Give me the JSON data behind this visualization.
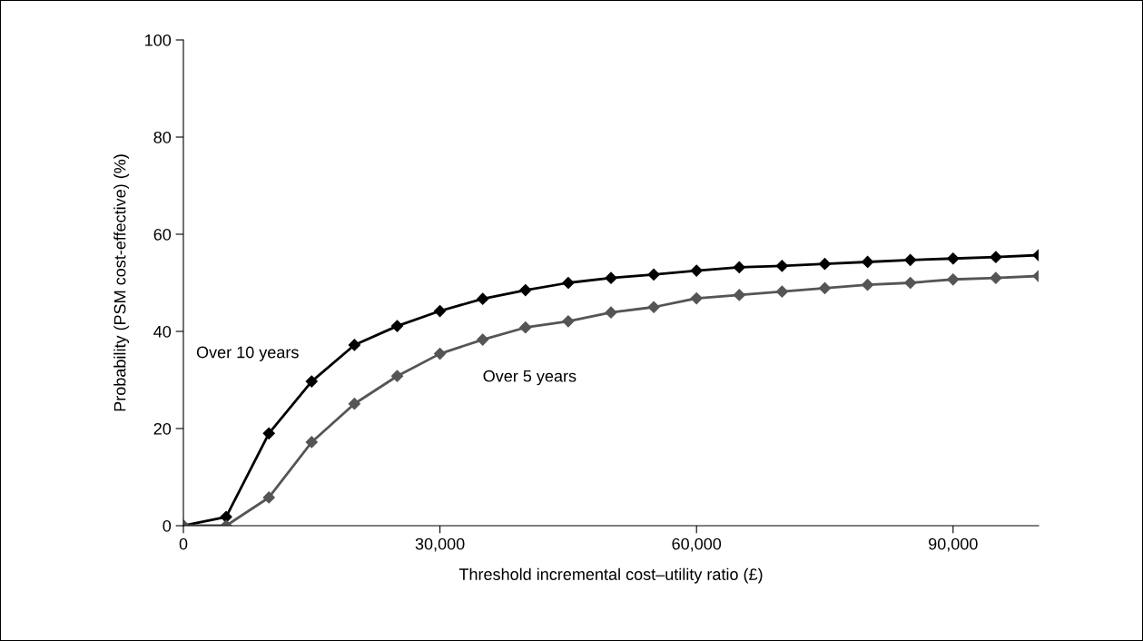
{
  "chart_data": {
    "type": "line",
    "xlabel": "Threshold incremental cost–utility ratio (£)",
    "ylabel": "Probability (PSM cost-effective) (%)",
    "x": [
      0,
      5000,
      10000,
      15000,
      20000,
      25000,
      30000,
      35000,
      40000,
      45000,
      50000,
      55000,
      60000,
      65000,
      70000,
      75000,
      80000,
      85000,
      90000,
      95000,
      100000
    ],
    "series": [
      {
        "name": "Over 10 years",
        "color": "#000000",
        "values": [
          0,
          1.8,
          19,
          29.7,
          37.2,
          41.1,
          44.2,
          46.7,
          48.5,
          50,
          51,
          51.7,
          52.5,
          53.2,
          53.5,
          53.9,
          54.3,
          54.7,
          55,
          55.3,
          55.7
        ]
      },
      {
        "name": "Over 5 years",
        "color": "#555555",
        "values": [
          0,
          0,
          5.8,
          17.2,
          25.1,
          30.8,
          35.4,
          38.3,
          40.8,
          42.1,
          43.9,
          45,
          46.8,
          47.5,
          48.2,
          48.9,
          49.6,
          50,
          50.7,
          51,
          51.4
        ]
      }
    ],
    "xlim": [
      0,
      100000
    ],
    "ylim": [
      0,
      100
    ],
    "xticks": [
      0,
      {
        "value": 30000,
        "label": "30,000"
      },
      {
        "value": 60000,
        "label": "60,000"
      },
      {
        "value": 90000,
        "label": "90,000"
      }
    ],
    "yticks": [
      0,
      20,
      40,
      60,
      80,
      100
    ],
    "grid": false,
    "legend": false,
    "marker": "diamond",
    "line_style": "solid"
  }
}
